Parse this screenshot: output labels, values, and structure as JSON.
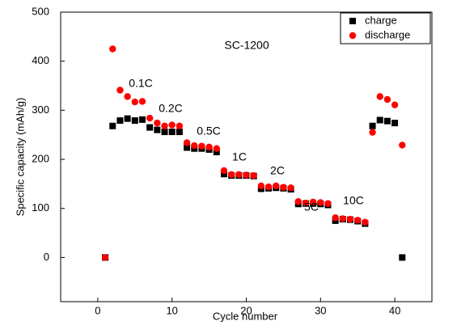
{
  "chart_data": {
    "type": "scatter",
    "x_label": "Cycle number",
    "y_label": "Specific capacity (mAh/g)",
    "annotations": [
      "SC-1200",
      "0.1C",
      "0.2C",
      "0.5C",
      "1C",
      "2C",
      "5C",
      "10C"
    ],
    "x": [
      1,
      2,
      3,
      4,
      5,
      6,
      7,
      8,
      9,
      10,
      11,
      12,
      13,
      14,
      15,
      16,
      17,
      18,
      19,
      20,
      21,
      22,
      23,
      24,
      25,
      26,
      27,
      28,
      29,
      30,
      31,
      32,
      33,
      34,
      35,
      36,
      37,
      38,
      39,
      40,
      41
    ],
    "series": [
      {
        "name": "charge",
        "color": "#000000",
        "marker": "square",
        "values": [
          0,
          268,
          279,
          283,
          279,
          281,
          265,
          260,
          256,
          256,
          256,
          224,
          222,
          222,
          220,
          215,
          170,
          167,
          167,
          167,
          166,
          140,
          141,
          142,
          141,
          139,
          109,
          110,
          110,
          109,
          107,
          75,
          78,
          77,
          74,
          69,
          268,
          280,
          278,
          274,
          0
        ]
      },
      {
        "name": "discharge",
        "color": "#ff0000",
        "marker": "circle",
        "values": [
          0,
          425,
          341,
          328,
          317,
          318,
          284,
          274,
          268,
          270,
          268,
          234,
          228,
          227,
          225,
          222,
          177,
          169,
          169,
          168,
          167,
          146,
          144,
          146,
          143,
          142,
          114,
          111,
          113,
          112,
          110,
          81,
          79,
          78,
          76,
          72,
          255,
          328,
          322,
          311,
          229
        ]
      }
    ],
    "xlim": [
      -5,
      45
    ],
    "xticks": [
      0,
      10,
      20,
      30,
      40
    ],
    "ylim": [
      -90,
      500
    ],
    "yticks": [
      0,
      100,
      200,
      300,
      400,
      500
    ],
    "grid": false,
    "legend": "upper right"
  }
}
